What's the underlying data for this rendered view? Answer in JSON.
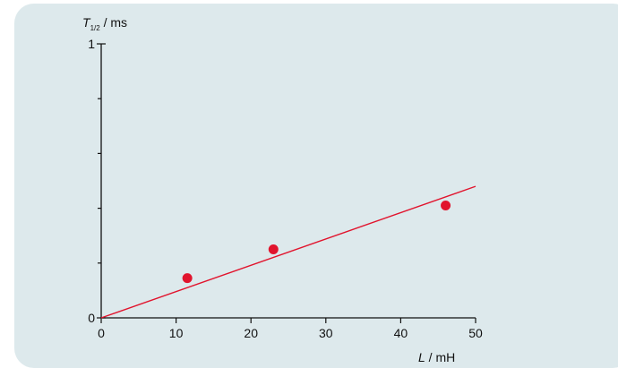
{
  "chart_data": {
    "type": "scatter",
    "y_axis_label": {
      "symbol": "T",
      "subscript": "1/2",
      "unit": " / ms"
    },
    "x_axis_label": {
      "symbol": "L",
      "unit": " / mH"
    },
    "xlim": [
      0,
      50
    ],
    "ylim": [
      0,
      1
    ],
    "x_ticks": [
      0,
      10,
      20,
      30,
      40,
      50
    ],
    "y_tick_labels": [
      0,
      1
    ],
    "y_minor_ticks": [
      0.2,
      0.4,
      0.6,
      0.8
    ],
    "points": [
      {
        "x": 11.5,
        "y": 0.145
      },
      {
        "x": 23,
        "y": 0.25
      },
      {
        "x": 46,
        "y": 0.41
      }
    ],
    "fit_line": {
      "from": [
        0,
        0
      ],
      "to": [
        50,
        0.48
      ]
    },
    "colors": {
      "marker": "#e1142d",
      "line": "#e1142d",
      "axis": "#111111",
      "background": "#dde9ec"
    }
  }
}
